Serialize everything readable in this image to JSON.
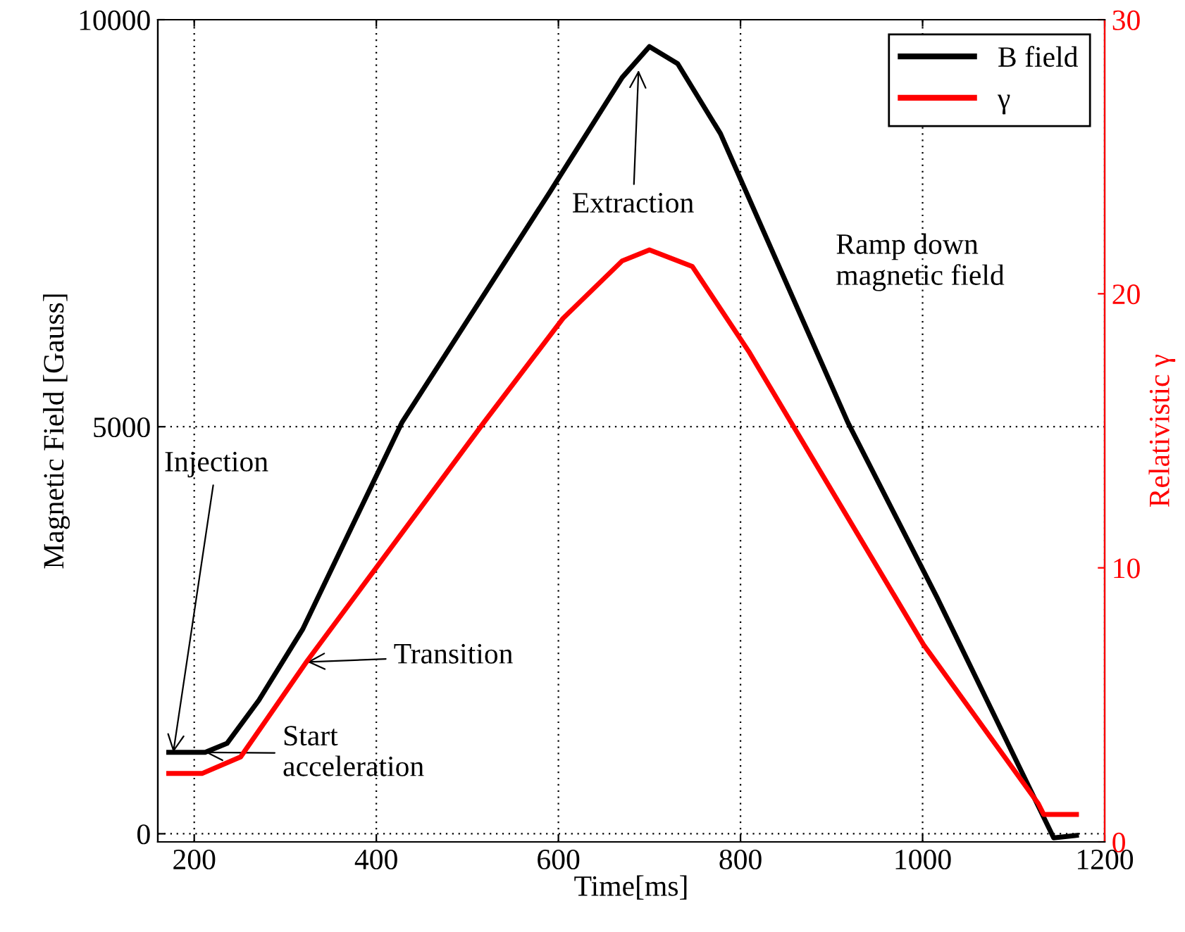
{
  "chart_data": {
    "type": "line",
    "xlabel": "Time[ms]",
    "ylabel": "Magnetic Field [Gauss]",
    "y2label": "Relativistic γ",
    "xlim": [
      160,
      1200
    ],
    "xticks": [
      200,
      400,
      600,
      800,
      1000,
      1200
    ],
    "ylim": [
      -100,
      10000
    ],
    "yticks": [
      0,
      5000,
      10000
    ],
    "y2lim": [
      0,
      30
    ],
    "y2ticks": [
      0,
      10,
      20,
      30
    ],
    "grid": true,
    "legend": "top right",
    "line_style": "solid",
    "marker": "none",
    "series": [
      {
        "name": "B field",
        "color": "#000000",
        "x": [
          172,
          212,
          236,
          271,
          319,
          428,
          591,
          670,
          700,
          731,
          778,
          918,
          1016,
          1144,
          1169
        ],
        "values": [
          1000,
          1000,
          1110,
          1640,
          2510,
          5050,
          7890,
          9290,
          9670,
          9460,
          8600,
          5050,
          2900,
          -50,
          -20
        ]
      },
      {
        "name": "γ",
        "color": "#ff0000",
        "axis": "y2",
        "x": [
          172,
          209,
          251,
          324,
          518,
          605,
          670,
          700,
          747,
          809,
          1001,
          1127,
          1133,
          1169
        ],
        "values": [
          2.5,
          2.5,
          3.1,
          6.6,
          15.3,
          19.1,
          21.2,
          21.6,
          21.0,
          17.9,
          7.2,
          1.4,
          1.0,
          1.0
        ]
      }
    ],
    "annotations": [
      {
        "text": "Injection",
        "x": 177,
        "y": 1000
      },
      {
        "text": "Start\nacceleration",
        "x": 212,
        "y": 1000
      },
      {
        "text": "Transition",
        "x": 324,
        "y": 2110
      },
      {
        "text": "Extraction",
        "x": 688,
        "y": 9380
      },
      "Ramp down\nmagnetic field"
    ]
  }
}
